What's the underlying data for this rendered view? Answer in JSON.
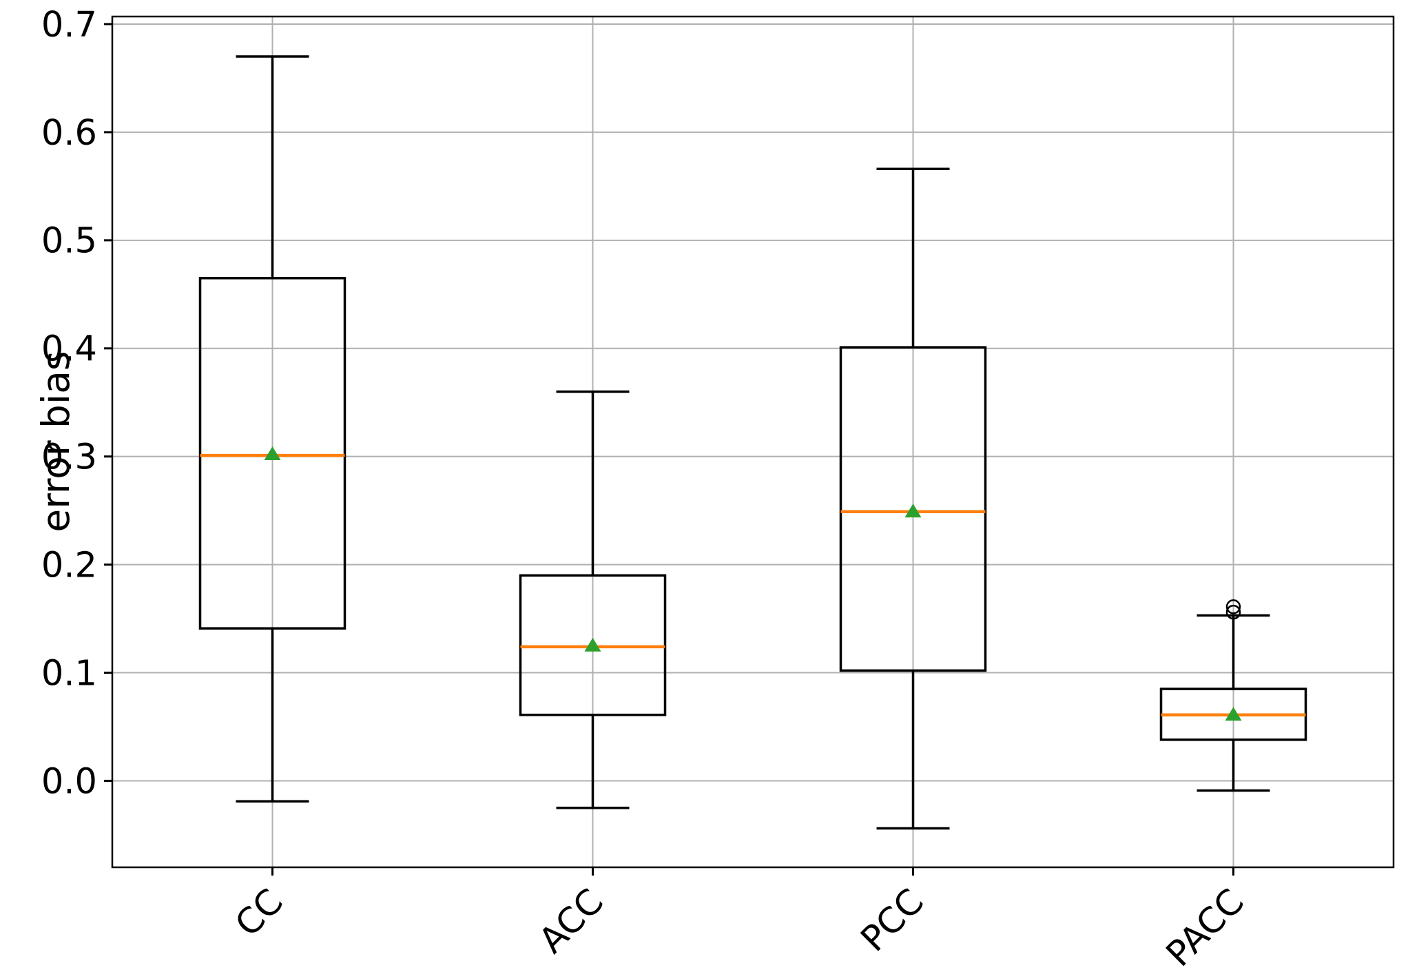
{
  "figure": {
    "background": "#ffffff"
  },
  "chart_data": {
    "type": "boxplot",
    "title": "",
    "xlabel": "",
    "ylabel": "error bias",
    "categories": [
      "CC",
      "ACC",
      "PCC",
      "PACC"
    ],
    "ytick_labels": [
      "0.0",
      "0.1",
      "0.2",
      "0.3",
      "0.4",
      "0.5",
      "0.6",
      "0.7"
    ],
    "ytick_values": [
      0.0,
      0.1,
      0.2,
      0.3,
      0.4,
      0.5,
      0.6,
      0.7
    ],
    "ylim": [
      -0.08,
      0.707
    ],
    "grid": true,
    "legend": false,
    "xlabel_rotation_deg": 45,
    "series": [
      {
        "label": "CC",
        "whislo": -0.019,
        "q1": 0.141,
        "med": 0.301,
        "mean": 0.303,
        "q3": 0.465,
        "whishi": 0.67,
        "fliers": []
      },
      {
        "label": "ACC",
        "whislo": -0.025,
        "q1": 0.061,
        "med": 0.124,
        "mean": 0.126,
        "q3": 0.19,
        "whishi": 0.36,
        "fliers": []
      },
      {
        "label": "PCC",
        "whislo": -0.044,
        "q1": 0.102,
        "med": 0.249,
        "mean": 0.25,
        "q3": 0.401,
        "whishi": 0.566,
        "fliers": []
      },
      {
        "label": "PACC",
        "whislo": -0.009,
        "q1": 0.038,
        "med": 0.061,
        "mean": 0.062,
        "q3": 0.085,
        "whishi": 0.153,
        "fliers": [
          0.156,
          0.161
        ]
      }
    ],
    "colors": {
      "box_line": "#000000",
      "median": "#ff7f0e",
      "mean_marker": "#2ca02c",
      "grid": "#b0b0b0",
      "spine": "#000000",
      "flier_edge": "#000000",
      "background": "#ffffff",
      "text": "#000000"
    }
  }
}
